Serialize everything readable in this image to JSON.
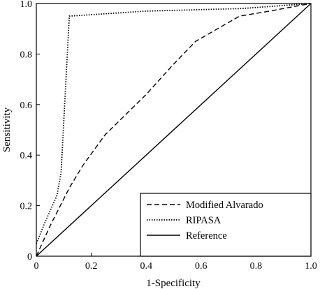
{
  "chart_data": {
    "type": "line",
    "title": "",
    "xlabel": "1-Specificity",
    "ylabel": "Sensitivity",
    "xlim": [
      0,
      1
    ],
    "ylim": [
      0,
      1
    ],
    "x_ticks": [
      0,
      0.2,
      0.4,
      0.6,
      0.8,
      1.0
    ],
    "x_tick_labels": [
      "0",
      "0.2",
      "0.4",
      "0.6",
      "0.8",
      "1.0"
    ],
    "y_ticks": [
      0,
      0.2,
      0.4,
      0.6,
      0.8,
      1.0
    ],
    "y_tick_labels": [
      "0",
      "0.2",
      "0.4",
      "0.6",
      "0.8",
      "1.0"
    ],
    "grid": false,
    "legend_position": "bottom-right",
    "series": [
      {
        "name": "Modified Alvarado",
        "style": "dashed",
        "color": "#000000",
        "points": [
          [
            0,
            0
          ],
          [
            0.05,
            0.12
          ],
          [
            0.12,
            0.27
          ],
          [
            0.17,
            0.36
          ],
          [
            0.25,
            0.48
          ],
          [
            0.4,
            0.64
          ],
          [
            0.5,
            0.76
          ],
          [
            0.58,
            0.85
          ],
          [
            0.74,
            0.95
          ],
          [
            0.85,
            0.97
          ],
          [
            0.95,
            0.99
          ],
          [
            1.0,
            1.0
          ]
        ]
      },
      {
        "name": "RIPASA",
        "style": "dotted",
        "color": "#000000",
        "points": [
          [
            0,
            0.05
          ],
          [
            0.03,
            0.13
          ],
          [
            0.075,
            0.24
          ],
          [
            0.09,
            0.33
          ],
          [
            0.12,
            0.95
          ],
          [
            0.4,
            0.97
          ],
          [
            0.75,
            0.98
          ],
          [
            1.0,
            1.0
          ]
        ]
      },
      {
        "name": "Reference",
        "style": "solid",
        "color": "#000000",
        "points": [
          [
            0,
            0
          ],
          [
            1.0,
            1.0
          ]
        ]
      }
    ]
  }
}
